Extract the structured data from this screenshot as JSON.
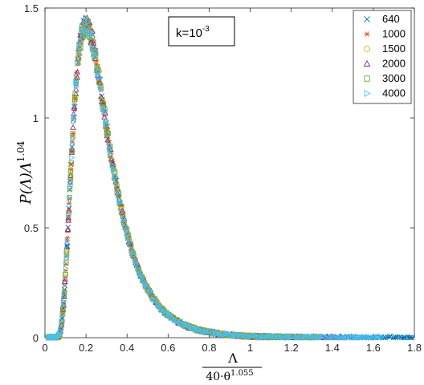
{
  "chart_data": {
    "type": "scatter",
    "title": "",
    "annotation": {
      "base": "k=10",
      "exponent": "-3"
    },
    "xlabel": {
      "numerator": "Λ",
      "denominator_base": "40·θ",
      "denominator_exponent": "1.055"
    },
    "ylabel": {
      "main": "P(Λ)Λ",
      "exponent": "1.04"
    },
    "xlim": [
      0,
      1.8
    ],
    "ylim": [
      0,
      1.5
    ],
    "xticks": [
      0,
      0.2,
      0.4,
      0.6,
      0.8,
      1,
      1.2,
      1.4,
      1.6,
      1.8
    ],
    "xtick_labels": [
      "0",
      "0.2",
      "0.4",
      "0.6",
      "0.8",
      "1",
      "1.2",
      "1.4",
      "1.6",
      "1.8"
    ],
    "yticks": [
      0,
      0.5,
      1,
      1.5
    ],
    "ytick_labels": [
      "0",
      "0.5",
      "1",
      "1.5"
    ],
    "grid": false,
    "legend_position": "top-right",
    "curve_shape": {
      "peak_x": 0.22,
      "peak_y": 1.39,
      "onset_x": 0.04,
      "spread": 0.09
    },
    "series": [
      {
        "name": "640",
        "marker": "x",
        "color": "#0072BD",
        "x_max": 1.8
      },
      {
        "name": "1000",
        "marker": "asterisk",
        "color": "#D95319",
        "x_max": 1.0
      },
      {
        "name": "1500",
        "marker": "circle",
        "color": "#EDB120",
        "x_max": 1.1
      },
      {
        "name": "2000",
        "marker": "triangle-up",
        "color": "#7E2F8E",
        "x_max": 1.45
      },
      {
        "name": "3000",
        "marker": "square",
        "color": "#77AC30",
        "x_max": 1.35
      },
      {
        "name": "4000",
        "marker": "triangle-right",
        "color": "#4DBEEE",
        "x_max": 1.65
      }
    ]
  }
}
